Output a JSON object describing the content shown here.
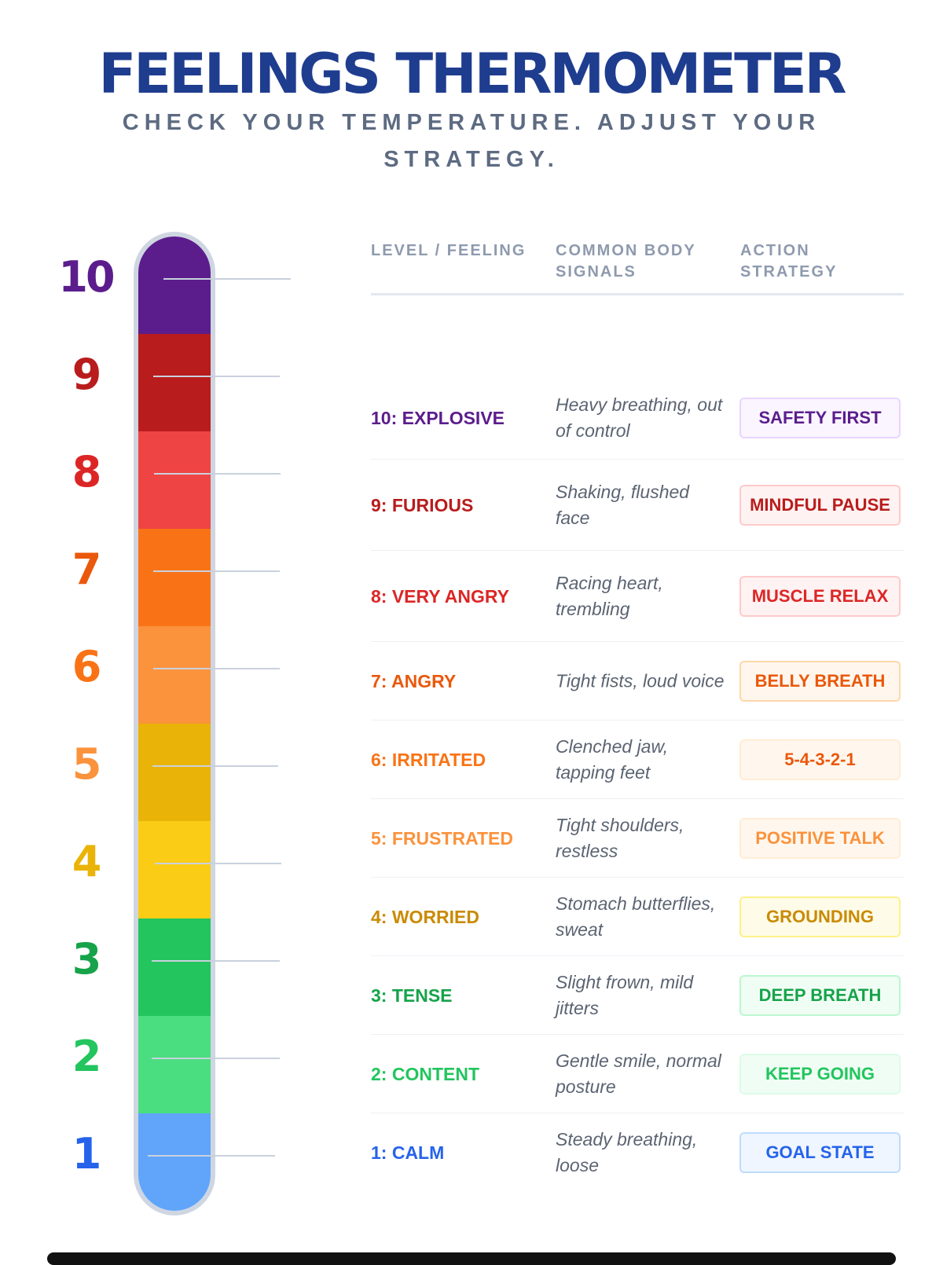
{
  "header": {
    "title": "FEELINGS THERMOMETER",
    "subtitle": "CHECK YOUR TEMPERATURE. ADJUST YOUR STRATEGY."
  },
  "thermometer": {
    "levels": [
      {
        "number": "10",
        "color": "#5b1d8c",
        "text_color": "#5b1d8c"
      },
      {
        "number": "9",
        "color": "#b91c1c",
        "text_color": "#b91c1c"
      },
      {
        "number": "8",
        "color": "#ef4444",
        "text_color": "#dc2626"
      },
      {
        "number": "7",
        "color": "#f97316",
        "text_color": "#ea580c"
      },
      {
        "number": "6",
        "color": "#fb923c",
        "text_color": "#f97316"
      },
      {
        "number": "5",
        "color": "#eab308",
        "text_color": "#fb923c"
      },
      {
        "number": "4",
        "color": "#facc15",
        "text_color": "#eab308"
      },
      {
        "number": "3",
        "color": "#22c55e",
        "text_color": "#16a34a"
      },
      {
        "number": "2",
        "color": "#4ade80",
        "text_color": "#22c55e"
      },
      {
        "number": "1",
        "color": "#60a5fa",
        "text_color": "#2563eb"
      }
    ]
  },
  "table": {
    "headers": {
      "level": "LEVEL / FEELING",
      "signals": "COMMON BODY SIGNALS",
      "action": "ACTION STRATEGY"
    },
    "rows": [
      {
        "level": "10: EXPLOSIVE",
        "signals": "Heavy breathing, out of control",
        "action": "SAFETY FIRST",
        "level_color": "#5b1d8c",
        "action_text": "#5b1d8c",
        "action_bg": "#faf5ff",
        "action_border": "#e9d5ff"
      },
      {
        "level": "9: FURIOUS",
        "signals": "Shaking, flushed face",
        "action": "MINDFUL PAUSE",
        "level_color": "#b91c1c",
        "action_text": "#b91c1c",
        "action_bg": "#fef2f2",
        "action_border": "#fecaca"
      },
      {
        "level": "8: VERY ANGRY",
        "signals": "Racing heart, trembling",
        "action": "MUSCLE RELAX",
        "level_color": "#dc2626",
        "action_text": "#dc2626",
        "action_bg": "#fef2f2",
        "action_border": "#fecaca"
      },
      {
        "level": "7: ANGRY",
        "signals": "Tight fists, loud voice",
        "action": "BELLY BREATH",
        "level_color": "#ea580c",
        "action_text": "#ea580c",
        "action_bg": "#fff7ed",
        "action_border": "#fed7aa"
      },
      {
        "level": "6: IRRITATED",
        "signals": "Clenched jaw, tapping feet",
        "action": "5-4-3-2-1",
        "level_color": "#f97316",
        "action_text": "#ea580c",
        "action_bg": "#fff7ed",
        "action_border": "#ffedd5"
      },
      {
        "level": "5: FRUSTRATED",
        "signals": "Tight shoulders, restless",
        "action": "POSITIVE TALK",
        "level_color": "#fb923c",
        "action_text": "#fb923c",
        "action_bg": "#fff7ed",
        "action_border": "#ffedd5"
      },
      {
        "level": "4: WORRIED",
        "signals": "Stomach butterflies, sweat",
        "action": "GROUNDING",
        "level_color": "#ca8a04",
        "action_text": "#ca8a04",
        "action_bg": "#fefce8",
        "action_border": "#fef08a"
      },
      {
        "level": "3: TENSE",
        "signals": "Slight frown, mild jitters",
        "action": "DEEP BREATH",
        "level_color": "#16a34a",
        "action_text": "#16a34a",
        "action_bg": "#f0fdf4",
        "action_border": "#bbf7d0"
      },
      {
        "level": "2: CONTENT",
        "signals": "Gentle smile, normal posture",
        "action": "KEEP GOING",
        "level_color": "#22c55e",
        "action_text": "#22c55e",
        "action_bg": "#f0fdf4",
        "action_border": "#dcfce7"
      },
      {
        "level": "1: CALM",
        "signals": "Steady breathing, loose",
        "action": "GOAL STATE",
        "level_color": "#2563eb",
        "action_text": "#2563eb",
        "action_bg": "#eff6ff",
        "action_border": "#bfdbfe"
      }
    ]
  }
}
